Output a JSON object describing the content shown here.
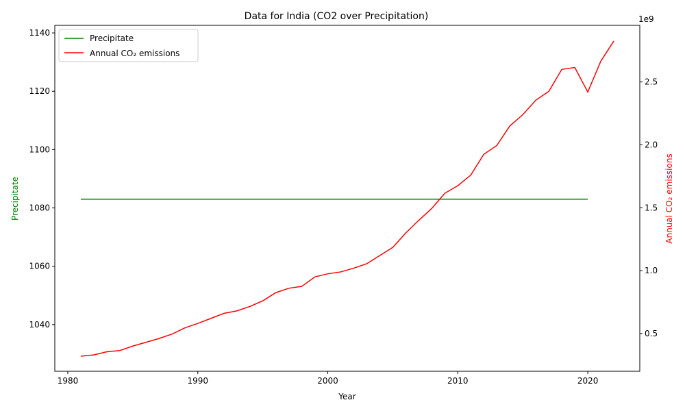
{
  "chart_data": {
    "type": "line",
    "title": "Data for India (CO2 over Precipitation)",
    "xlabel": "Year",
    "ylabel_left": "Precipitate",
    "ylabel_right": "Annual CO₂ emissions",
    "right_axis_offset_label": "1e9",
    "xlim": [
      1979,
      2024
    ],
    "ylim_left": [
      1024,
      1142.6
    ],
    "ylim_right": [
      200000000.0,
      2950000000.0
    ],
    "x_ticks": [
      1980,
      1990,
      2000,
      2010,
      2020
    ],
    "y_ticks_left": [
      1040,
      1060,
      1080,
      1100,
      1120,
      1140
    ],
    "y_ticks_right": [
      0.5,
      1.0,
      1.5,
      2.0,
      2.5
    ],
    "legend_position": "top-left",
    "grid": false,
    "series": [
      {
        "name": "Precipitate",
        "axis": "left",
        "color": "#008000",
        "x": [
          1981,
          2020
        ],
        "values": [
          1083,
          1083
        ]
      },
      {
        "name": "Annual CO₂ emissions",
        "axis": "right",
        "color": "#ff0000",
        "x": [
          1981,
          1982,
          1983,
          1984,
          1985,
          1986,
          1987,
          1988,
          1989,
          1990,
          1991,
          1992,
          1993,
          1994,
          1995,
          1996,
          1997,
          1998,
          1999,
          2000,
          2001,
          2002,
          2003,
          2004,
          2005,
          2006,
          2007,
          2008,
          2009,
          2010,
          2011,
          2012,
          2013,
          2014,
          2015,
          2016,
          2017,
          2018,
          2019,
          2020,
          2021,
          2022
        ],
        "values": [
          320000000.0,
          330000000.0,
          355000000.0,
          365000000.0,
          400000000.0,
          430000000.0,
          460000000.0,
          495000000.0,
          545000000.0,
          580000000.0,
          620000000.0,
          660000000.0,
          680000000.0,
          715000000.0,
          760000000.0,
          825000000.0,
          860000000.0,
          875000000.0,
          950000000.0,
          975000000.0,
          990000000.0,
          1020000000.0,
          1055000000.0,
          1120000000.0,
          1185000000.0,
          1300000000.0,
          1400000000.0,
          1495000000.0,
          1615000000.0,
          1675000000.0,
          1760000000.0,
          1925000000.0,
          1995000000.0,
          2150000000.0,
          2240000000.0,
          2355000000.0,
          2425000000.0,
          2600000000.0,
          2615000000.0,
          2420000000.0,
          2665000000.0,
          2825000000.0
        ]
      }
    ]
  }
}
